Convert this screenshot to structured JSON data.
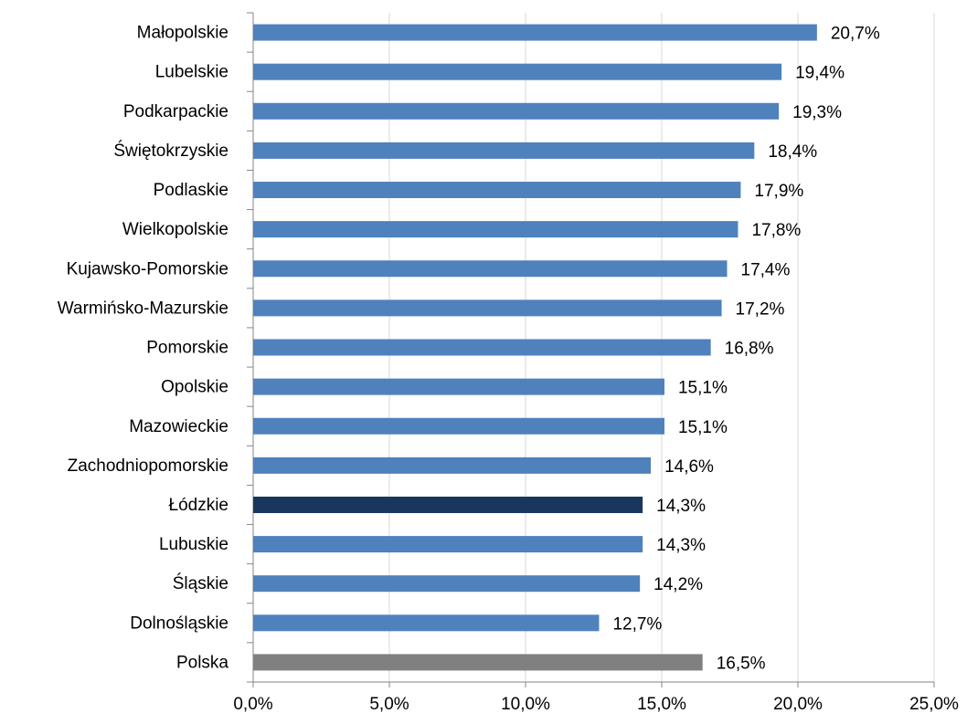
{
  "chart_data": {
    "type": "bar",
    "orientation": "horizontal",
    "categories": [
      "Małopolskie",
      "Lubelskie",
      "Podkarpackie",
      "Świętokrzyskie",
      "Podlaskie",
      "Wielkopolskie",
      "Kujawsko-Pomorskie",
      "Warmińsko-Mazurskie",
      "Pomorskie",
      "Opolskie",
      "Mazowieckie",
      "Zachodniopomorskie",
      "Łódzkie",
      "Lubuskie",
      "Śląskie",
      "Dolnośląskie",
      "Polska"
    ],
    "values": [
      20.7,
      19.4,
      19.3,
      18.4,
      17.9,
      17.8,
      17.4,
      17.2,
      16.8,
      15.1,
      15.1,
      14.6,
      14.3,
      14.3,
      14.2,
      12.7,
      16.5
    ],
    "value_labels": [
      "20,7%",
      "19,4%",
      "19,3%",
      "18,4%",
      "17,9%",
      "17,8%",
      "17,4%",
      "17,2%",
      "16,8%",
      "15,1%",
      "15,1%",
      "14,6%",
      "14,3%",
      "14,3%",
      "14,2%",
      "12,7%",
      "16,5%"
    ],
    "colors": [
      "#4f81bd",
      "#4f81bd",
      "#4f81bd",
      "#4f81bd",
      "#4f81bd",
      "#4f81bd",
      "#4f81bd",
      "#4f81bd",
      "#4f81bd",
      "#4f81bd",
      "#4f81bd",
      "#4f81bd",
      "#17375e",
      "#4f81bd",
      "#4f81bd",
      "#4f81bd",
      "#808080"
    ],
    "xlim": [
      0,
      25
    ],
    "xticks": [
      {
        "value": 0,
        "label": "0,0%"
      },
      {
        "value": 5,
        "label": "5,0%"
      },
      {
        "value": 10,
        "label": "10,0%"
      },
      {
        "value": 15,
        "label": "15,0%"
      },
      {
        "value": 20,
        "label": "20,0%"
      },
      {
        "value": 25,
        "label": "25,0%"
      }
    ],
    "grid": true
  }
}
